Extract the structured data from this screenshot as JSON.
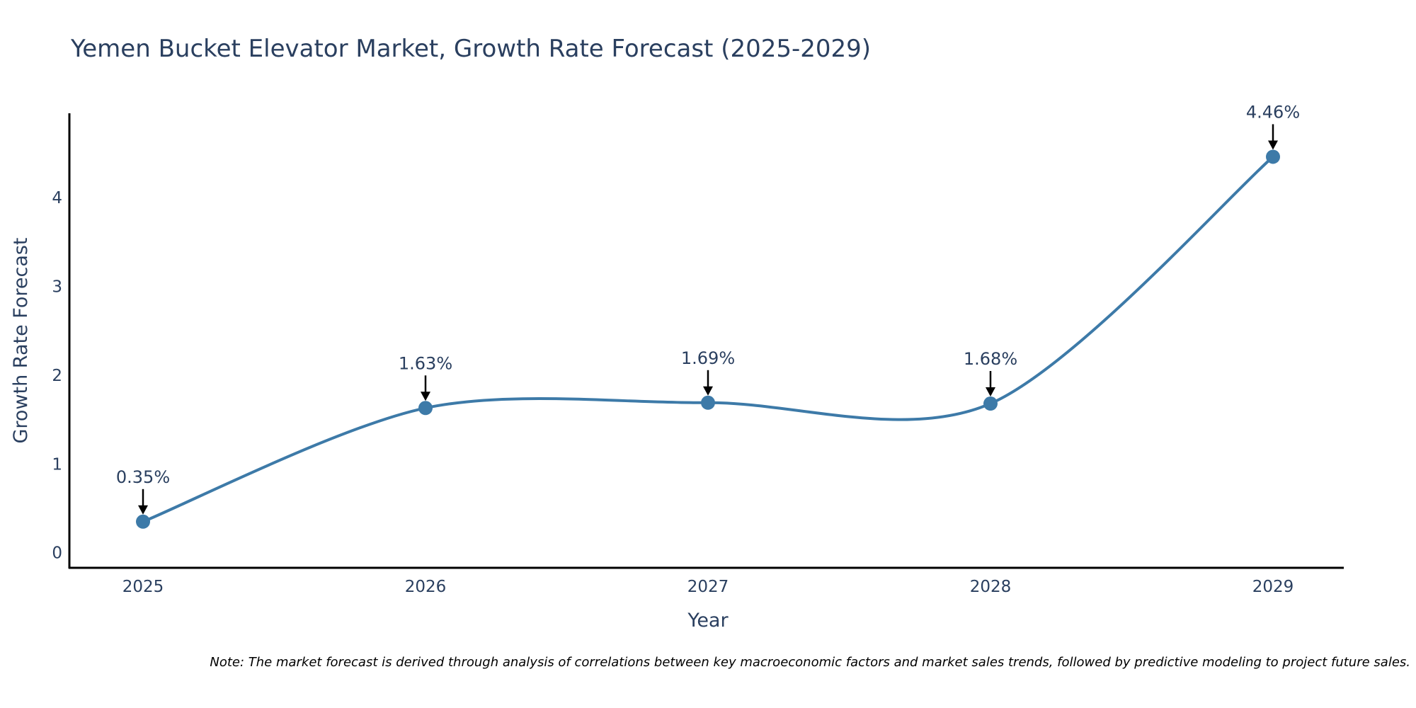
{
  "chart_data": {
    "type": "line",
    "title": "Yemen Bucket Elevator Market, Growth Rate Forecast (2025-2029)",
    "xlabel": "Year",
    "ylabel": "Growth Rate Forecast",
    "categories": [
      "2025",
      "2026",
      "2027",
      "2028",
      "2029"
    ],
    "series": [
      {
        "name": "Growth Rate Forecast",
        "values": [
          0.35,
          1.63,
          1.69,
          1.68,
          4.46
        ],
        "labels": [
          "0.35%",
          "1.63%",
          "1.69%",
          "1.68%",
          "4.46%"
        ],
        "color": "#3d7aa8"
      }
    ],
    "ylim": [
      -0.17,
      4.95
    ],
    "yticks": [
      "0",
      "1",
      "2",
      "3",
      "4"
    ],
    "grid": false,
    "legend": "none",
    "line_shape": "spline",
    "note": "Note: The market forecast is derived through analysis of correlations between key macroeconomic factors and market sales trends, followed by predictive modeling to project future sales."
  }
}
